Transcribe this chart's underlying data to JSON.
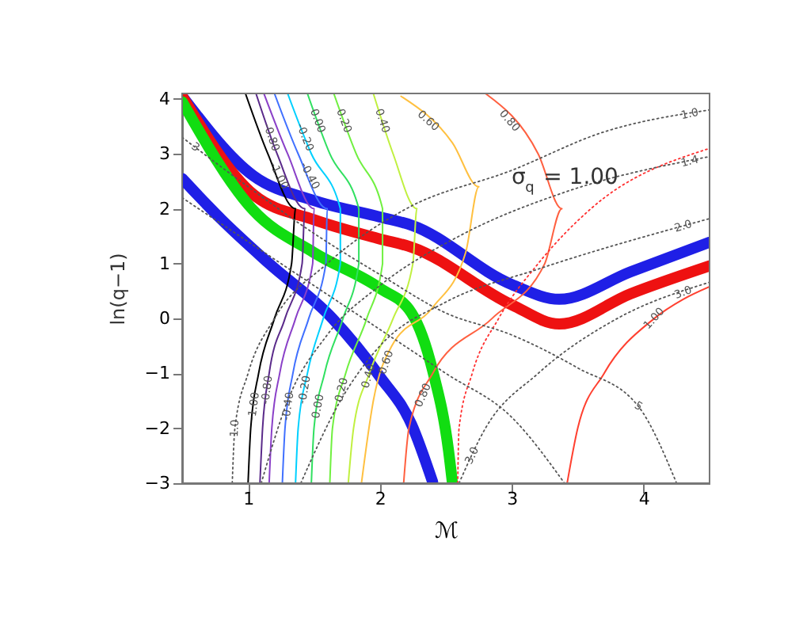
{
  "chart_data": {
    "type": "line",
    "xlabel": "ℳ",
    "ylabel": "ln(q−1)",
    "xlim": [
      0.5,
      4.5
    ],
    "ylim": [
      -3,
      4.1
    ],
    "xticks": [
      {
        "value": 1,
        "label": "1"
      },
      {
        "value": 2,
        "label": "2"
      },
      {
        "value": 3,
        "label": "3"
      },
      {
        "value": 4,
        "label": "4"
      }
    ],
    "yticks": [
      -3,
      -2,
      -1,
      0,
      1,
      2,
      3,
      4
    ],
    "grid": false,
    "series": [
      {
        "color": "#1f1fe6",
        "x": [
          0.5,
          1.04,
          1.5,
          2.0,
          2.24,
          3.0,
          3.36,
          3.9,
          4.5
        ],
        "values": [
          4.05,
          2.6,
          2.15,
          1.85,
          1.7,
          0.62,
          0.35,
          0.85,
          1.39
        ]
      },
      {
        "color": "#ee1111",
        "x": [
          0.5,
          1.04,
          1.5,
          2.0,
          2.24,
          3.0,
          3.36,
          3.9,
          4.5
        ],
        "values": [
          4.05,
          2.26,
          1.8,
          1.45,
          1.3,
          0.25,
          -0.1,
          0.45,
          0.96
        ]
      },
      {
        "color": "#11dd11",
        "x": [
          0.5,
          1.04,
          1.5,
          2.0,
          2.24,
          2.4,
          2.52,
          2.55
        ],
        "values": [
          3.95,
          1.97,
          1.2,
          0.55,
          0.1,
          -0.95,
          -2.4,
          -3
        ]
      },
      {
        "color": "#1f1fe6",
        "x": [
          0.5,
          0.8,
          1.16,
          1.64,
          2.0,
          2.24,
          2.4
        ],
        "values": [
          2.55,
          1.8,
          1.0,
          0.0,
          -1.06,
          -1.93,
          -2.98
        ]
      },
      {
        "color": "#000000",
        "x": [
          0.98,
          1.15,
          1.36,
          1.33,
          1.2,
          1.08,
          1.02,
          1.0
        ],
        "values": [
          4.1,
          3,
          2,
          1,
          0,
          -1,
          -2,
          -3
        ]
      },
      {
        "color": "#5a2a8a",
        "x": [
          1.06,
          1.22,
          1.43,
          1.41,
          1.28,
          1.16,
          1.11,
          1.09
        ],
        "values": [
          4.1,
          3,
          2,
          1,
          0,
          -1,
          -2,
          -3
        ]
      },
      {
        "color": "#8a40c8",
        "x": [
          1.12,
          1.3,
          1.5,
          1.49,
          1.36,
          1.24,
          1.18,
          1.16
        ],
        "values": [
          4.1,
          3,
          2,
          1,
          0,
          -1,
          -2,
          -3
        ]
      },
      {
        "color": "#4070ff",
        "x": [
          1.2,
          1.38,
          1.6,
          1.59,
          1.46,
          1.34,
          1.28,
          1.26
        ],
        "values": [
          4.1,
          3,
          2,
          1,
          0,
          -1,
          -2,
          -3
        ]
      },
      {
        "color": "#00d0ff",
        "x": [
          1.3,
          1.48,
          1.7,
          1.7,
          1.57,
          1.45,
          1.38,
          1.36
        ],
        "values": [
          4.1,
          3,
          2,
          1,
          0,
          -1,
          -2,
          -3
        ]
      },
      {
        "color": "#30e060",
        "x": [
          1.45,
          1.62,
          1.84,
          1.84,
          1.72,
          1.58,
          1.5,
          1.48
        ],
        "values": [
          4.1,
          3,
          2,
          1,
          0,
          -1,
          -2,
          -3
        ]
      },
      {
        "color": "#70f040",
        "x": [
          1.65,
          1.82,
          2.02,
          2.02,
          1.9,
          1.74,
          1.64,
          1.62
        ],
        "values": [
          4.1,
          3,
          2,
          1,
          0,
          -1,
          -2,
          -3
        ]
      },
      {
        "color": "#c0f040",
        "x": [
          1.95,
          2.1,
          2.28,
          2.25,
          2.1,
          1.92,
          1.8,
          1.76
        ],
        "values": [
          4.1,
          3,
          2,
          1,
          0,
          -1,
          -2,
          -3
        ]
      },
      {
        "color": "#ffc040",
        "x": [
          2.16,
          2.55,
          2.75,
          2.65,
          2.4,
          2.09,
          1.95,
          1.86
        ],
        "values": [
          4.05,
          3.2,
          2.4,
          1.2,
          0.2,
          -0.5,
          -1.5,
          -3
        ]
      },
      {
        "color": "#ff6040",
        "x": [
          2.8,
          3.2,
          3.38,
          3.25,
          2.85,
          2.4,
          2.22,
          2.18
        ],
        "values": [
          4.1,
          3,
          2,
          1,
          0,
          -1,
          -2,
          -3
        ]
      },
      {
        "color": "#ff4030",
        "x": [
          3.42,
          3.5,
          3.7,
          4.08,
          4.3,
          4.5
        ],
        "values": [
          -3,
          -2,
          -1,
          0,
          0.35,
          0.58
        ]
      },
      {
        "color": "#ff3030",
        "line_style": "dotted",
        "x": [
          2.59,
          2.6,
          2.7,
          2.9,
          3.2,
          3.6,
          4.5
        ],
        "values": [
          -3,
          -2,
          -1,
          0,
          1,
          2,
          3.1
        ]
      },
      {
        "color": "#555555",
        "line_style": "dotted",
        "x": [
          0.88,
          0.9,
          1.0,
          1.2,
          1.6,
          2.2,
          3.0,
          3.7,
          4.5
        ],
        "values": [
          -3,
          -2,
          -1,
          0,
          1,
          2,
          2.7,
          3.4,
          3.8
        ]
      },
      {
        "color": "#555555",
        "line_style": "dotted",
        "x": [
          1.1,
          1.3,
          1.6,
          2.0,
          2.6,
          3.4,
          4.5
        ],
        "values": [
          -3,
          -1.5,
          -0.3,
          0.6,
          1.5,
          2.3,
          2.95
        ]
      },
      {
        "color": "#555555",
        "line_style": "dotted",
        "x": [
          1.4,
          1.7,
          2.0,
          2.5,
          3.2,
          4.5
        ],
        "values": [
          -3,
          -1.5,
          -0.5,
          0.3,
          0.9,
          1.82
        ]
      },
      {
        "color": "#555555",
        "line_style": "dotted",
        "x": [
          2.6,
          2.8,
          3.2,
          3.8,
          4.5
        ],
        "values": [
          -3,
          -2,
          -1,
          0,
          0.66
        ]
      },
      {
        "color": "#555555",
        "line_style": "dotted",
        "x": [
          0.5,
          1.0,
          1.5,
          2.0,
          2.5,
          3.0,
          3.5,
          3.96,
          4.25
        ],
        "values": [
          3.3,
          2.4,
          1.55,
          0.8,
          0.1,
          -0.3,
          -0.9,
          -1.6,
          -3
        ]
      },
      {
        "color": "#555555",
        "line_style": "dotted",
        "x": [
          0.5,
          1.0,
          1.5,
          2.0,
          2.5,
          3.0,
          3.4
        ],
        "values": [
          2.2,
          1.4,
          0.6,
          -0.2,
          -1.0,
          -1.8,
          -3
        ]
      }
    ],
    "annotations": [
      "σ$_{q}$ = 1.00",
      {
        "text": "1.0",
        "x": 4.35,
        "y": 3.725
      },
      {
        "text": "1.4",
        "x": 4.35,
        "y": 2.861
      },
      {
        "text": "2.0",
        "x": 4.3,
        "y": 1.678
      },
      {
        "text": "3.0",
        "x": 4.3,
        "y": 0.471
      },
      {
        "text": "5",
        "x": 3.96,
        "y": -1.6
      },
      {
        "text": "3.0",
        "x": 2.7,
        "y": -2.5
      },
      {
        "text": "1.0",
        "x": 0.9,
        "y": -2.0
      },
      {
        "text": "3",
        "x": 0.6,
        "y": 3.12
      },
      {
        "text": "-1.00",
        "x": 1.234,
        "y": 2.6
      },
      {
        "text": "-0.80",
        "x": 1.176,
        "y": 3.3
      },
      {
        "text": "-0.40",
        "x": 1.468,
        "y": 2.6
      },
      {
        "text": "-0.20",
        "x": 1.431,
        "y": 3.3
      },
      {
        "text": "0.00",
        "x": 1.527,
        "y": 3.6
      },
      {
        "text": "0.20",
        "x": 1.727,
        "y": 3.6
      },
      {
        "text": "0.40",
        "x": 2.018,
        "y": 3.6
      },
      {
        "text": "0.60",
        "x": 2.366,
        "y": 3.6
      },
      {
        "text": "0.80",
        "x": 2.982,
        "y": 3.6
      },
      {
        "text": "1.00",
        "x": 4.08,
        "y": 0.0
      },
      {
        "text": "-1.00",
        "x": 1.044,
        "y": -1.6
      },
      {
        "text": "-0.80",
        "x": 1.145,
        "y": -1.3
      },
      {
        "text": "-0.40",
        "x": 1.304,
        "y": -1.6
      },
      {
        "text": "-0.20",
        "x": 1.429,
        "y": -1.3
      },
      {
        "text": "0.00",
        "x": 1.532,
        "y": -1.6
      },
      {
        "text": "0.20",
        "x": 1.71,
        "y": -1.3
      },
      {
        "text": "0.40",
        "x": 1.914,
        "y": -1.05
      },
      {
        "text": "0.60",
        "x": 2.048,
        "y": -0.8
      },
      {
        "text": "0.80",
        "x": 2.328,
        "y": -1.4
      }
    ]
  }
}
